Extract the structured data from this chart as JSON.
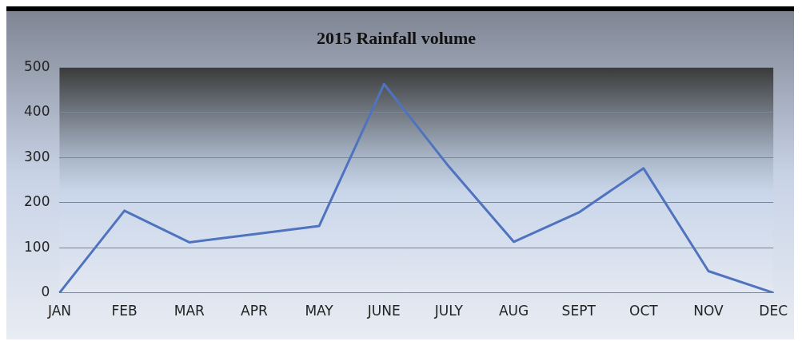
{
  "chart_data": {
    "type": "line",
    "title": "2015 Rainfall volume",
    "categories": [
      "JAN",
      "FEB",
      "MAR",
      "APR",
      "MAY",
      "JUNE",
      "JULY",
      "AUG",
      "SEPT",
      "OCT",
      "NOV",
      "DEC"
    ],
    "series": [
      {
        "color": "#4f73be",
        "values": [
          0,
          182,
          112,
          130,
          148,
          463,
          280,
          113,
          178,
          276,
          48,
          0
        ]
      }
    ],
    "ylim": [
      0,
      500
    ],
    "yticks": [
      0,
      100,
      200,
      300,
      400,
      500
    ],
    "grid": "y",
    "legend": false,
    "marker": "none",
    "line_style": "solid"
  }
}
